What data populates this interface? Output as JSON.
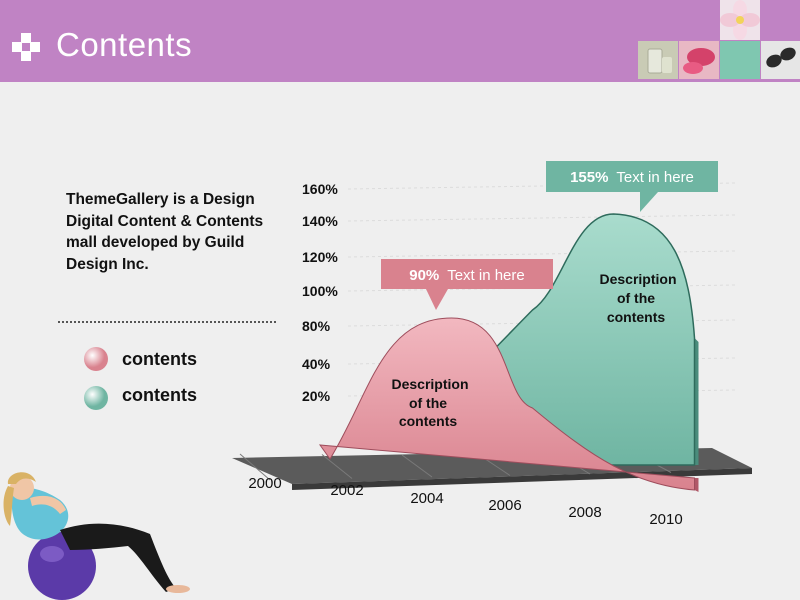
{
  "header": {
    "title": "Contents",
    "bg_color": "#c083c4",
    "thumbnail_icons": [
      "flower-photo-icon",
      "drink-glass-photo-icon",
      "fruit-photo-icon",
      "teal-square-icon",
      "sunglasses-photo-icon"
    ]
  },
  "intro": {
    "text": "ThemeGallery is a Design Digital Content & Contents mall developed by Guild Design Inc."
  },
  "legend": [
    {
      "label": "contents",
      "color": "#d9828e"
    },
    {
      "label": "contents",
      "color": "#6fb5a2"
    }
  ],
  "chart_data": {
    "type": "area",
    "x_tick_labels": [
      "2000",
      "2002",
      "2004",
      "2006",
      "2008",
      "2010"
    ],
    "y_tick_labels": [
      "160%",
      "140%",
      "120%",
      "100%",
      "80%",
      "40%",
      "20%"
    ],
    "series": [
      {
        "color": "#d9828e",
        "x": [
          2001,
          2004,
          2006,
          2010
        ],
        "y": [
          5,
          90,
          40,
          20
        ]
      },
      {
        "color": "#6fb5a2",
        "x": [
          2004.5,
          2006,
          2008,
          2010
        ],
        "y": [
          50,
          95,
          155,
          115
        ]
      }
    ],
    "callouts": [
      {
        "value": "90%",
        "text": "Text in here",
        "color": "#d9828e"
      },
      {
        "value": "155%",
        "text": "Text in here",
        "color": "#6fb5a2"
      }
    ],
    "annotations": [
      {
        "lines": [
          "Description",
          "of the",
          "contents"
        ]
      },
      {
        "lines": [
          "Description",
          "of the",
          "contents"
        ]
      }
    ]
  }
}
